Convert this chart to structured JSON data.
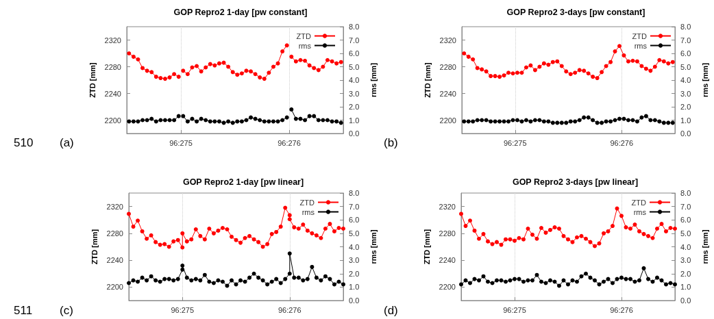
{
  "chart_data": [
    {
      "type": "line",
      "title": "GOP Repro2 1-day [pw constant]",
      "ylabel": "ZTD [mm]",
      "y2label": "rms [mm]",
      "xlim": [
        "--09-30T12:00",
        "--10-02T12:00"
      ],
      "xticks": [
        {
          "value": "--10-01",
          "label": "96:275"
        },
        {
          "value": "--10-02",
          "label": "96:276"
        }
      ],
      "ylim": [
        2180,
        2340
      ],
      "yticks": [
        2200,
        2240,
        2280,
        2320
      ],
      "y2lim": [
        0,
        8
      ],
      "y2ticks": [
        {
          "value": 0,
          "label": "0.0"
        },
        {
          "value": 1,
          "label": "1.0"
        },
        {
          "value": 2,
          "label": "2.0"
        },
        {
          "value": 3,
          "label": "3.0"
        },
        {
          "value": 4,
          "label": "4.0"
        },
        {
          "value": 5,
          "label": "5.0"
        },
        {
          "value": 6,
          "label": "6.0"
        },
        {
          "value": 7,
          "label": "7.0"
        },
        {
          "value": 8,
          "label": "8.0"
        }
      ],
      "grid": "x",
      "legend": "top right",
      "marker": "circle",
      "line_style": "solid",
      "annotations": [
        "510",
        "(a)"
      ],
      "x": [
        "--09-30T12:30",
        "--09-30T13:30",
        "--09-30T14:30",
        "--09-30T15:30",
        "--09-30T16:30",
        "--09-30T17:30",
        "--09-30T18:30",
        "--09-30T19:30",
        "--09-30T20:30",
        "--09-30T21:30",
        "--09-30T22:30",
        "--09-30T23:30",
        "--10-01T00:00",
        "--10-01T00:30",
        "--10-01T01:30",
        "--10-01T02:30",
        "--10-01T03:30",
        "--10-01T04:30",
        "--10-01T05:30",
        "--10-01T06:30",
        "--10-01T07:30",
        "--10-01T08:30",
        "--10-01T09:30",
        "--10-01T10:30",
        "--10-01T11:30",
        "--10-01T12:30",
        "--10-01T13:30",
        "--10-01T14:30",
        "--10-01T15:30",
        "--10-01T16:30",
        "--10-01T17:30",
        "--10-01T18:30",
        "--10-01T19:30",
        "--10-01T20:30",
        "--10-01T21:30",
        "--10-01T22:30",
        "--10-01T23:30",
        "--10-02T00:00",
        "--10-02T00:30",
        "--10-02T01:30",
        "--10-02T02:30",
        "--10-02T03:30",
        "--10-02T04:30",
        "--10-02T05:30",
        "--10-02T06:30",
        "--10-02T07:30",
        "--10-02T08:30",
        "--10-02T09:30",
        "--10-02T10:30",
        "--10-02T11:30"
      ],
      "series": [
        {
          "name": "ZTD",
          "color": "#ff0000",
          "values": [
            2300,
            2295,
            2291,
            2278,
            2274,
            2272,
            2265,
            2263,
            2262,
            2264,
            2269,
            2265,
            null,
            2274,
            2269,
            2279,
            2281,
            2273,
            2279,
            2284,
            2282,
            2285,
            2286,
            2280,
            2272,
            2268,
            2270,
            2274,
            2273,
            2269,
            2264,
            2262,
            2271,
            2280,
            2285,
            2303,
            2312,
            null,
            2295,
            2288,
            2290,
            2289,
            2282,
            2278,
            2275,
            2280,
            2290,
            2288,
            2285,
            2287
          ]
        },
        {
          "name": "rms",
          "color": "#000000",
          "axis": "y2",
          "values": [
            0.9,
            0.9,
            0.9,
            1.0,
            1.0,
            1.1,
            0.9,
            1.0,
            1.0,
            1.0,
            1.0,
            1.3,
            null,
            1.3,
            0.9,
            1.1,
            0.9,
            1.1,
            1.0,
            0.9,
            0.9,
            0.9,
            0.8,
            0.9,
            0.8,
            0.9,
            0.9,
            1.0,
            1.2,
            1.1,
            1.0,
            0.9,
            0.9,
            0.9,
            0.9,
            1.0,
            1.2,
            null,
            1.8,
            1.1,
            1.1,
            1.0,
            1.3,
            1.3,
            1.0,
            1.0,
            1.0,
            0.9,
            0.9,
            0.8
          ]
        }
      ]
    },
    {
      "type": "line",
      "title": "GOP Repro2 3-days [pw constant]",
      "ylabel": "ZTD [mm]",
      "y2label": "rms [mm]",
      "xlim": [
        "--09-30T12:00",
        "--10-02T12:00"
      ],
      "xticks": [
        {
          "value": "--10-01",
          "label": "96:275"
        },
        {
          "value": "--10-02",
          "label": "96:276"
        }
      ],
      "ylim": [
        2180,
        2340
      ],
      "yticks": [
        2200,
        2240,
        2280,
        2320
      ],
      "y2lim": [
        0,
        8
      ],
      "y2ticks": [
        {
          "value": 0,
          "label": "0.0"
        },
        {
          "value": 1,
          "label": "1.0"
        },
        {
          "value": 2,
          "label": "2.0"
        },
        {
          "value": 3,
          "label": "3.0"
        },
        {
          "value": 4,
          "label": "4.0"
        },
        {
          "value": 5,
          "label": "5.0"
        },
        {
          "value": 6,
          "label": "6.0"
        },
        {
          "value": 7,
          "label": "7.0"
        },
        {
          "value": 8,
          "label": "8.0"
        }
      ],
      "grid": "x",
      "legend": "top right",
      "marker": "circle",
      "line_style": "solid",
      "annotations": [
        "(b)"
      ],
      "x": [
        "--09-30T12:30",
        "--09-30T13:30",
        "--09-30T14:30",
        "--09-30T15:30",
        "--09-30T16:30",
        "--09-30T17:30",
        "--09-30T18:30",
        "--09-30T19:30",
        "--09-30T20:30",
        "--09-30T21:30",
        "--09-30T22:30",
        "--09-30T23:30",
        "--10-01T00:30",
        "--10-01T01:30",
        "--10-01T02:30",
        "--10-01T03:30",
        "--10-01T04:30",
        "--10-01T05:30",
        "--10-01T06:30",
        "--10-01T07:30",
        "--10-01T08:30",
        "--10-01T09:30",
        "--10-01T10:30",
        "--10-01T11:30",
        "--10-01T12:30",
        "--10-01T13:30",
        "--10-01T14:30",
        "--10-01T15:30",
        "--10-01T16:30",
        "--10-01T17:30",
        "--10-01T18:30",
        "--10-01T19:30",
        "--10-01T20:30",
        "--10-01T21:30",
        "--10-01T22:30",
        "--10-01T23:30",
        "--10-02T00:30",
        "--10-02T01:30",
        "--10-02T02:30",
        "--10-02T03:30",
        "--10-02T04:30",
        "--10-02T05:30",
        "--10-02T06:30",
        "--10-02T07:30",
        "--10-02T08:30",
        "--10-02T09:30",
        "--10-02T10:30",
        "--10-02T11:30"
      ],
      "series": [
        {
          "name": "ZTD",
          "color": "#ff0000",
          "values": [
            2300,
            2295,
            2291,
            2278,
            2276,
            2273,
            2266,
            2266,
            2265,
            2267,
            2271,
            2270,
            2271,
            2271,
            2279,
            2282,
            2275,
            2280,
            2285,
            2283,
            2287,
            2288,
            2281,
            2273,
            2269,
            2271,
            2275,
            2274,
            2270,
            2265,
            2263,
            2272,
            2281,
            2287,
            2303,
            2311,
            2297,
            2288,
            2289,
            2288,
            2281,
            2277,
            2274,
            2280,
            2290,
            2288,
            2285,
            2287
          ]
        },
        {
          "name": "rms",
          "color": "#000000",
          "axis": "y2",
          "values": [
            0.9,
            0.9,
            0.9,
            1.0,
            1.0,
            1.0,
            0.9,
            0.9,
            0.9,
            0.9,
            0.9,
            1.0,
            1.0,
            0.9,
            1.0,
            0.9,
            1.0,
            1.0,
            0.9,
            0.9,
            0.8,
            0.8,
            0.8,
            0.8,
            0.9,
            0.9,
            1.0,
            1.2,
            1.2,
            1.0,
            0.8,
            0.8,
            0.9,
            0.9,
            1.0,
            1.1,
            1.1,
            1.0,
            1.0,
            0.9,
            1.2,
            1.3,
            1.0,
            1.0,
            0.9,
            0.8,
            0.8,
            0.8
          ]
        }
      ]
    },
    {
      "type": "line",
      "title": "GOP Repro2 1-day [pw linear]",
      "ylabel": "ZTD [mm]",
      "y2label": "rms [mm]",
      "xlim": [
        "--09-30T12:00",
        "--10-02T12:00"
      ],
      "xticks": [
        {
          "value": "--10-01",
          "label": "96:275"
        },
        {
          "value": "--10-02",
          "label": "96:276"
        }
      ],
      "ylim": [
        2180,
        2340
      ],
      "yticks": [
        2200,
        2240,
        2280,
        2320
      ],
      "y2lim": [
        0,
        8
      ],
      "y2ticks": [
        {
          "value": 0,
          "label": "0.0"
        },
        {
          "value": 1,
          "label": "1.0"
        },
        {
          "value": 2,
          "label": "2.0"
        },
        {
          "value": 3,
          "label": "3.0"
        },
        {
          "value": 4,
          "label": "4.0"
        },
        {
          "value": 5,
          "label": "5.0"
        },
        {
          "value": 6,
          "label": "6.0"
        },
        {
          "value": 7,
          "label": "7.0"
        },
        {
          "value": 8,
          "label": "8.0"
        }
      ],
      "grid": "x",
      "legend": "top right",
      "marker": "circle",
      "line_style": "solid",
      "annotations": [
        "511",
        "(c)"
      ],
      "x": [
        "--09-30T12:00",
        "--09-30T13:00",
        "--09-30T14:00",
        "--09-30T15:00",
        "--09-30T16:00",
        "--09-30T17:00",
        "--09-30T18:00",
        "--09-30T19:00",
        "--09-30T20:00",
        "--09-30T21:00",
        "--09-30T22:00",
        "--09-30T23:00",
        "--10-01T00:00",
        "--10-01T00:00",
        "--10-01T01:00",
        "--10-01T02:00",
        "--10-01T03:00",
        "--10-01T04:00",
        "--10-01T05:00",
        "--10-01T06:00",
        "--10-01T07:00",
        "--10-01T08:00",
        "--10-01T09:00",
        "--10-01T10:00",
        "--10-01T11:00",
        "--10-01T12:00",
        "--10-01T13:00",
        "--10-01T14:00",
        "--10-01T15:00",
        "--10-01T16:00",
        "--10-01T17:00",
        "--10-01T18:00",
        "--10-01T19:00",
        "--10-01T20:00",
        "--10-01T21:00",
        "--10-01T22:00",
        "--10-01T23:00",
        "--10-02T00:00",
        "--10-02T00:00",
        "--10-02T01:00",
        "--10-02T02:00",
        "--10-02T03:00",
        "--10-02T04:00",
        "--10-02T05:00",
        "--10-02T06:00",
        "--10-02T07:00",
        "--10-02T08:00",
        "--10-02T09:00",
        "--10-02T10:00",
        "--10-02T11:00",
        "--10-02T12:00"
      ],
      "series": [
        {
          "name": "ZTD",
          "color": "#ff0000",
          "values": [
            2309,
            2290,
            2299,
            2283,
            2272,
            2277,
            2267,
            2263,
            2264,
            2260,
            2268,
            2270,
            2259,
            2280,
            2268,
            2271,
            2286,
            2276,
            2271,
            2287,
            2280,
            2284,
            2288,
            2286,
            2275,
            2270,
            2266,
            2273,
            2276,
            2271,
            2267,
            2260,
            2264,
            2279,
            2282,
            2290,
            2318,
            2307,
            2301,
            2289,
            2287,
            2293,
            2284,
            2280,
            2277,
            2273,
            2287,
            2294,
            2283,
            2288,
            2287
          ]
        },
        {
          "name": "rms",
          "color": "#000000",
          "axis": "y2",
          "values": [
            1.3,
            1.5,
            1.4,
            1.7,
            1.5,
            1.8,
            1.5,
            1.4,
            1.6,
            1.6,
            1.5,
            1.6,
            2.3,
            2.6,
            1.7,
            1.5,
            1.6,
            1.5,
            1.9,
            1.4,
            1.3,
            1.5,
            1.4,
            1.1,
            1.5,
            1.2,
            1.5,
            1.4,
            1.7,
            2.0,
            1.7,
            1.5,
            1.2,
            1.4,
            1.6,
            1.3,
            1.6,
            2.0,
            3.5,
            1.7,
            1.7,
            1.5,
            1.6,
            2.5,
            1.7,
            1.5,
            1.8,
            1.6,
            1.2,
            1.4,
            1.2
          ]
        }
      ]
    },
    {
      "type": "line",
      "title": "GOP Repro2 3-days [pw linear]",
      "ylabel": "ZTD [mm]",
      "y2label": "rms [mm]",
      "xlim": [
        "--09-30T12:00",
        "--10-02T12:00"
      ],
      "xticks": [
        {
          "value": "--10-01",
          "label": "96:275"
        },
        {
          "value": "--10-02",
          "label": "96:276"
        }
      ],
      "ylim": [
        2180,
        2340
      ],
      "yticks": [
        2200,
        2240,
        2280,
        2320
      ],
      "y2lim": [
        0,
        8
      ],
      "y2ticks": [
        {
          "value": 0,
          "label": "0.0"
        },
        {
          "value": 1,
          "label": "1.0"
        },
        {
          "value": 2,
          "label": "2.0"
        },
        {
          "value": 3,
          "label": "3.0"
        },
        {
          "value": 4,
          "label": "4.0"
        },
        {
          "value": 5,
          "label": "5.0"
        },
        {
          "value": 6,
          "label": "6.0"
        },
        {
          "value": 7,
          "label": "7.0"
        },
        {
          "value": 8,
          "label": "8.0"
        }
      ],
      "grid": "x",
      "legend": "top right",
      "marker": "circle",
      "line_style": "solid",
      "annotations": [
        "(d)"
      ],
      "x": [
        "--09-30T12:00",
        "--09-30T13:00",
        "--09-30T14:00",
        "--09-30T15:00",
        "--09-30T16:00",
        "--09-30T17:00",
        "--09-30T18:00",
        "--09-30T19:00",
        "--09-30T20:00",
        "--09-30T21:00",
        "--09-30T22:00",
        "--09-30T23:00",
        "--10-01T00:00",
        "--10-01T01:00",
        "--10-01T02:00",
        "--10-01T03:00",
        "--10-01T04:00",
        "--10-01T05:00",
        "--10-01T06:00",
        "--10-01T07:00",
        "--10-01T08:00",
        "--10-01T09:00",
        "--10-01T10:00",
        "--10-01T11:00",
        "--10-01T12:00",
        "--10-01T13:00",
        "--10-01T14:00",
        "--10-01T15:00",
        "--10-01T16:00",
        "--10-01T17:00",
        "--10-01T18:00",
        "--10-01T19:00",
        "--10-01T20:00",
        "--10-01T21:00",
        "--10-01T22:00",
        "--10-01T23:00",
        "--10-02T00:00",
        "--10-02T01:00",
        "--10-02T02:00",
        "--10-02T03:00",
        "--10-02T04:00",
        "--10-02T05:00",
        "--10-02T06:00",
        "--10-02T07:00",
        "--10-02T08:00",
        "--10-02T09:00",
        "--10-02T10:00",
        "--10-02T11:00",
        "--10-02T12:00"
      ],
      "series": [
        {
          "name": "ZTD",
          "color": "#ff0000",
          "values": [
            2309,
            2291,
            2299,
            2284,
            2272,
            2279,
            2268,
            2264,
            2267,
            2263,
            2271,
            2271,
            2269,
            2273,
            2271,
            2287,
            2278,
            2272,
            2288,
            2281,
            2285,
            2289,
            2287,
            2276,
            2271,
            2267,
            2274,
            2276,
            2272,
            2267,
            2261,
            2265,
            2280,
            2283,
            2291,
            2317,
            2306,
            2289,
            2287,
            2293,
            2283,
            2279,
            2276,
            2273,
            2287,
            2294,
            2283,
            2288,
            2287
          ]
        },
        {
          "name": "rms",
          "color": "#000000",
          "axis": "y2",
          "values": [
            1.2,
            1.5,
            1.3,
            1.6,
            1.5,
            1.8,
            1.4,
            1.3,
            1.5,
            1.5,
            1.4,
            1.5,
            1.6,
            1.6,
            1.4,
            1.5,
            1.5,
            1.9,
            1.4,
            1.3,
            1.5,
            1.4,
            1.1,
            1.5,
            1.2,
            1.5,
            1.4,
            1.8,
            2.0,
            1.7,
            1.5,
            1.2,
            1.4,
            1.6,
            1.3,
            1.6,
            1.7,
            1.6,
            1.6,
            1.4,
            1.5,
            2.4,
            1.6,
            1.4,
            1.7,
            1.5,
            1.2,
            1.3,
            1.2
          ]
        }
      ]
    }
  ]
}
